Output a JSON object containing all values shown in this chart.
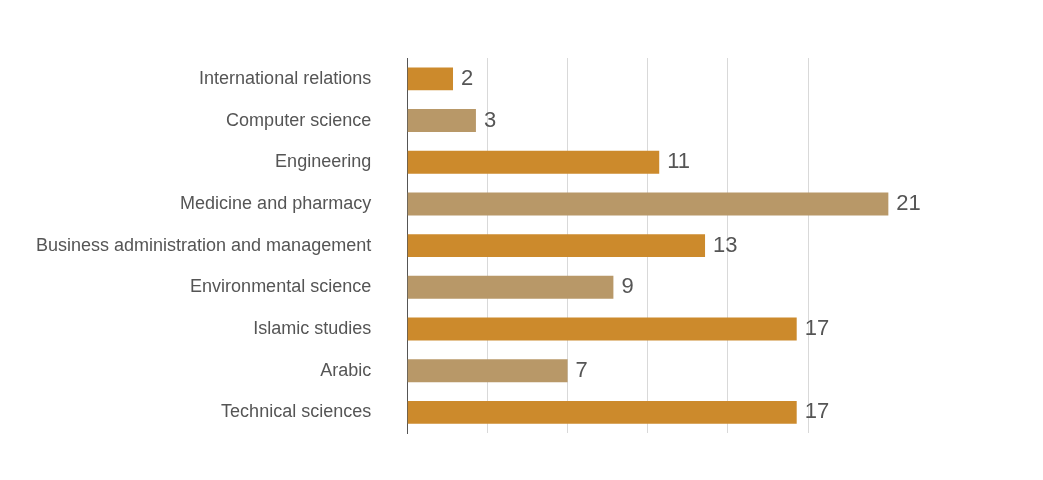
{
  "chart_data": {
    "type": "bar",
    "orientation": "horizontal",
    "categories": [
      "International relations",
      "Computer science",
      "Engineering",
      "Medicine and pharmacy",
      "Business administration and management",
      "Environmental science",
      "Islamic studies",
      "Arabic",
      "Technical sciences"
    ],
    "values": [
      2,
      3,
      11,
      21,
      13,
      9,
      17,
      7,
      17
    ],
    "colors": [
      "#cc8a2c",
      "#b89868",
      "#cc8a2c",
      "#b89868",
      "#cc8a2c",
      "#b89868",
      "#cc8a2c",
      "#b89868",
      "#cc8a2c"
    ],
    "xticks": [
      {
        "value": 0,
        "label": null
      },
      {
        "value": 3.5,
        "label": null
      },
      {
        "value": 7,
        "label": null
      },
      {
        "value": 10.5,
        "label": null
      },
      {
        "value": 14,
        "label": null
      },
      {
        "value": 17.5,
        "label": null
      }
    ],
    "tick_labels": "y",
    "grid": "x",
    "data_labels": true,
    "legend": false
  }
}
